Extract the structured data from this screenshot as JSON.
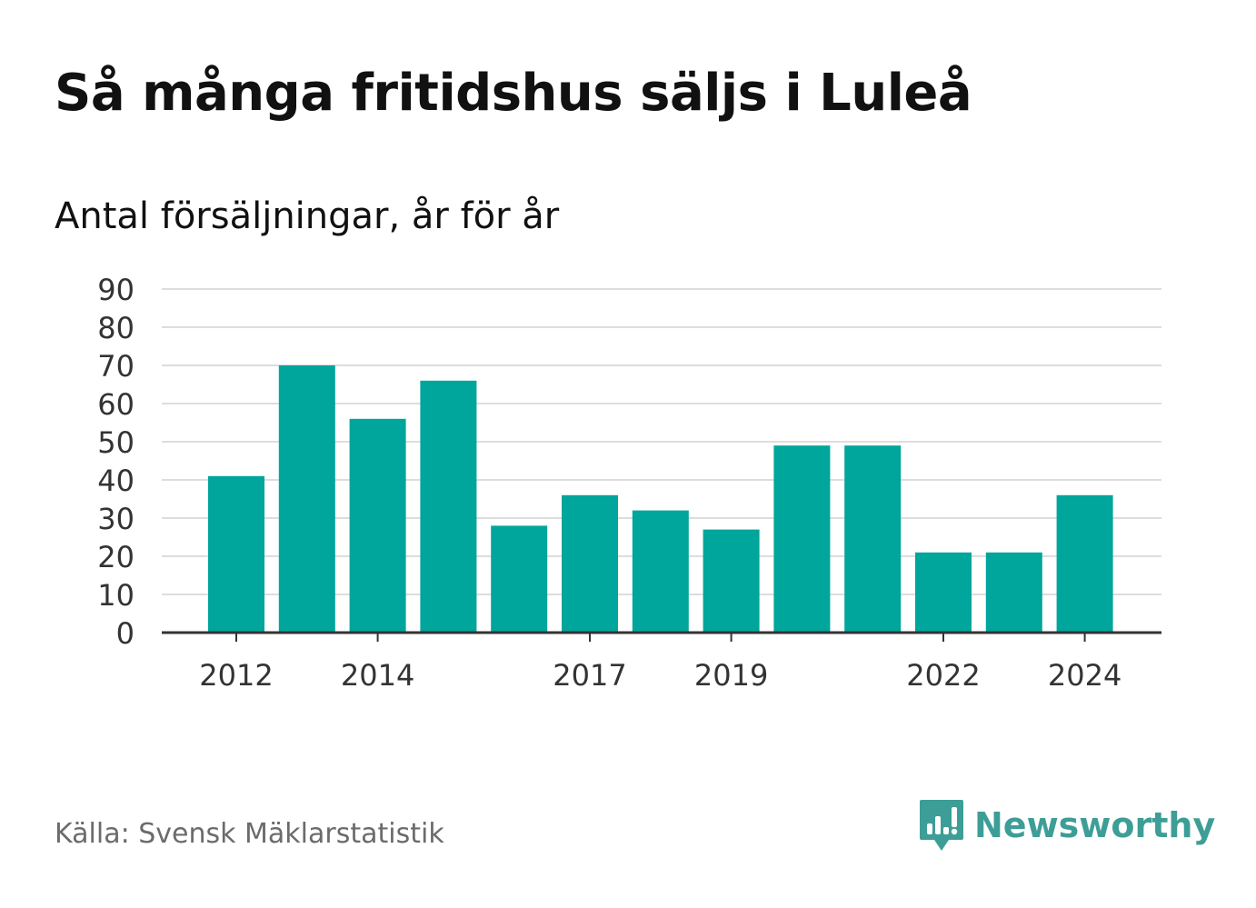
{
  "header": {
    "title": "Så många fritidshus säljs i Luleå",
    "subtitle": "Antal försäljningar, år för år"
  },
  "footer": {
    "source": "Källa: Svensk Mäklarstatistik",
    "brand": "Newsworthy"
  },
  "icons": {
    "logo": "bar-chart-speech-bubble-icon"
  },
  "colors": {
    "bar": "#00a59b",
    "grid": "#dddddd",
    "axis": "#333333",
    "brand": "#3d9e97"
  },
  "chart_data": {
    "type": "bar",
    "title": "Så många fritidshus säljs i Luleå",
    "subtitle": "Antal försäljningar, år för år",
    "xlabel": "",
    "ylabel": "",
    "categories": [
      "2012",
      "2013",
      "2014",
      "2015",
      "2016",
      "2017",
      "2018",
      "2019",
      "2020",
      "2021",
      "2022",
      "2023",
      "2024"
    ],
    "values": [
      41,
      70,
      56,
      66,
      28,
      36,
      32,
      27,
      49,
      49,
      21,
      21,
      36
    ],
    "x_tick_labels": [
      "2012",
      "2014",
      "2017",
      "2019",
      "2022",
      "2024"
    ],
    "y_ticks": [
      0,
      10,
      20,
      30,
      40,
      50,
      60,
      70,
      80,
      90
    ],
    "ylim": [
      0,
      90
    ],
    "grid": true,
    "legend": "none"
  }
}
